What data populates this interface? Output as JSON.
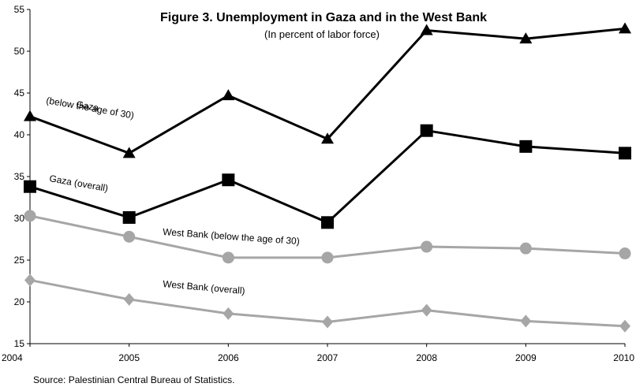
{
  "chart_data": {
    "type": "line",
    "title": "Figure 3. Unemployment in Gaza and in the West Bank",
    "subtitle": "(In percent of labor force)",
    "xlabel": "",
    "ylabel": "",
    "x": [
      "2004",
      "2005",
      "2006",
      "2007",
      "2008",
      "2009",
      "2010"
    ],
    "ylim": [
      15,
      55
    ],
    "yticks": [
      15,
      20,
      25,
      30,
      35,
      40,
      45,
      50,
      55
    ],
    "grid": false,
    "legend": "none",
    "series": [
      {
        "name": "",
        "values": [
          42.2,
          37.8,
          44.7,
          39.5,
          52.5,
          51.5,
          52.7
        ],
        "color": "#000000",
        "marker": "triangle",
        "annotation_lines": [
          "Gaza",
          "(below the age of 30)"
        ]
      },
      {
        "name": "",
        "values": [
          33.8,
          30.1,
          34.6,
          29.5,
          40.5,
          38.6,
          37.8
        ],
        "color": "#000000",
        "marker": "square",
        "annotation_lines": [
          "Gaza (overall)"
        ]
      },
      {
        "name": "",
        "values": [
          30.3,
          27.8,
          25.3,
          25.3,
          26.6,
          26.4,
          25.8
        ],
        "color": "#a6a6a6",
        "marker": "circle",
        "annotation_lines": [
          "West Bank (below the age of 30)"
        ]
      },
      {
        "name": "",
        "values": [
          22.6,
          20.3,
          18.6,
          17.6,
          19.0,
          17.7,
          17.1
        ],
        "color": "#a6a6a6",
        "marker": "diamond",
        "annotation_lines": [
          "West Bank (overall)"
        ]
      }
    ],
    "source": "Source: Palestinian Central Bureau of Statistics."
  }
}
